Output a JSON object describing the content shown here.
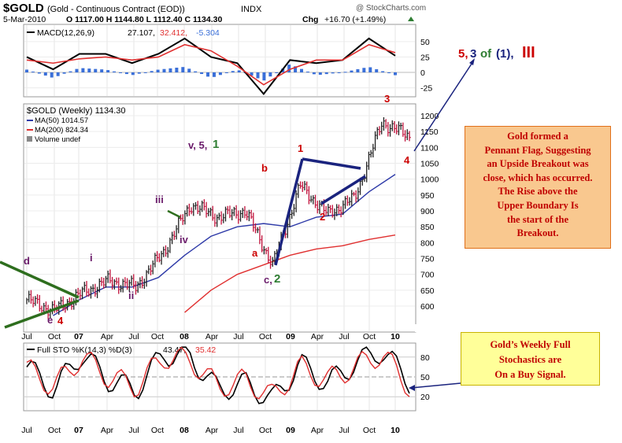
{
  "header": {
    "ticker": "$GOLD",
    "name": "(Gold - Continuous Contract (EOD))",
    "exchange": "INDX",
    "watermark": "@ StockCharts.com",
    "date": "5-Mar-2010",
    "ohlc": "O 1117.00  H 1144.80  L 1112.40  C 1134.30",
    "chg_label": "Chg",
    "chg_value": "+16.70 (+1.49%)",
    "chg_icon": "triangle-up-icon"
  },
  "macd": {
    "label": "MACD(12,26,9)",
    "v1": "27.107,",
    "v2": "32.412,",
    "v3": "-5.304",
    "ticks": [
      "50",
      "25",
      "0",
      "-25"
    ]
  },
  "price": {
    "legend_title": "$GOLD (Weekly) 1134.30",
    "ma50_label": "MA(50) 1014.57",
    "ma200_label": "MA(200) 824.34",
    "volume_label": "Volume undef",
    "ticks": [
      "1200",
      "1150",
      "1100",
      "1050",
      "1000",
      "950",
      "900",
      "850",
      "800",
      "750",
      "700",
      "650",
      "600"
    ]
  },
  "sto": {
    "label": "Full STO %K(14,3) %D(3)",
    "v1": "43.47,",
    "v2": "35.42",
    "ticks": [
      "80",
      "50",
      "20"
    ]
  },
  "x_axis": {
    "top": [
      "Jul",
      "Oct",
      "07",
      "Apr",
      "Jul",
      "Oct",
      "08",
      "Apr",
      "Jul",
      "Oct",
      "09",
      "Apr",
      "Jul",
      "Oct",
      "10"
    ],
    "bottom": [
      "Jul",
      "Oct",
      "07",
      "Apr",
      "Jul",
      "Oct",
      "08",
      "Apr",
      "Jul",
      "Oct",
      "09",
      "Apr",
      "Jul",
      "Oct",
      "10"
    ]
  },
  "wave_labels": {
    "d": "d",
    "i": "i",
    "e4_e": "e",
    "e4_4": "4",
    "ii": "ii",
    "iii": "iii",
    "iv": "iv",
    "v51_a": "v, 5,",
    "v51_b": "1",
    "b": "b",
    "a": "a",
    "c2_a": "c,",
    "c2_b": "2",
    "w1": "1",
    "w2": "2",
    "w3": "3",
    "w4": "4"
  },
  "outer_label": {
    "a": "5,",
    "b": "3",
    "c": "of",
    "d": "(1),",
    "e": "III"
  },
  "note_box": {
    "lines": [
      "Gold formed a",
      "Pennant Flag, Suggesting",
      "an Upside Breakout was",
      "close, which has occurred.",
      "The Rise above the",
      "Upper Boundary Is",
      "the start of the",
      "Breakout."
    ],
    "bg": "#f9c88f",
    "border": "#e0701a",
    "color": "#c00000"
  },
  "sto_box": {
    "lines": [
      "Gold’s Weekly Full",
      "Stochastics are",
      "On a Buy Signal."
    ],
    "bg": "#ffff99",
    "border": "#c8b400",
    "color": "#c00000"
  },
  "colors": {
    "macd_line": "#000000",
    "signal_line": "#e03030",
    "histogram": "#3a6fd8",
    "ma50": "#2e3aa8",
    "ma200": "#e03030",
    "annot_blue": "#1a237e",
    "annot_red": "#cc0000",
    "annot_green": "#2e7d32",
    "annot_purple": "#6a1b6a",
    "trendline_green": "#2e6e1e"
  },
  "chart_data": [
    {
      "type": "line",
      "title": "MACD(12,26,9)",
      "x": [
        "Jul",
        "Oct",
        "07",
        "Apr",
        "Jul",
        "Oct",
        "08",
        "Apr",
        "Jul",
        "Oct",
        "09",
        "Apr",
        "Jul",
        "Oct",
        "10"
      ],
      "series": [
        {
          "name": "MACD(12,26,9)",
          "values": [
            25,
            5,
            30,
            30,
            15,
            30,
            55,
            25,
            15,
            -35,
            20,
            15,
            20,
            55,
            27
          ]
        },
        {
          "name": "Signal",
          "values": [
            20,
            15,
            22,
            25,
            20,
            25,
            45,
            35,
            10,
            -20,
            5,
            20,
            20,
            45,
            32
          ]
        }
      ],
      "ylim": [
        -35,
        60
      ]
    },
    {
      "type": "line",
      "title": "$GOLD (Weekly) 1134.30",
      "x": [
        "Jul",
        "Oct",
        "07",
        "Apr",
        "Jul",
        "Oct",
        "08",
        "Apr",
        "Jul",
        "Oct",
        "09",
        "Apr",
        "Jul",
        "Oct",
        "10"
      ],
      "series": [
        {
          "name": "$GOLD (Weekly)",
          "values": [
            620,
            585,
            640,
            680,
            660,
            770,
            920,
            880,
            900,
            730,
            980,
            890,
            940,
            1180,
            1134
          ]
        },
        {
          "name": "MA(50)",
          "values": [
            null,
            570,
            620,
            660,
            660,
            690,
            760,
            820,
            850,
            860,
            850,
            880,
            890,
            960,
            1015
          ]
        },
        {
          "name": "MA(200)",
          "values": [
            null,
            null,
            null,
            null,
            null,
            null,
            580,
            650,
            700,
            730,
            760,
            780,
            790,
            810,
            824
          ]
        }
      ],
      "ylim": [
        560,
        1230
      ]
    },
    {
      "type": "line",
      "title": "Full STO %K(14,3) %D(3)",
      "x": [
        "Jul",
        "Oct",
        "07",
        "Apr",
        "Jul",
        "Oct",
        "08",
        "Apr",
        "Jul",
        "Oct",
        "09",
        "Apr",
        "Jul",
        "Oct",
        "10"
      ],
      "series": [
        {
          "name": "%K(14,3)",
          "values": [
            65,
            30,
            85,
            45,
            30,
            85,
            80,
            30,
            40,
            15,
            70,
            40,
            70,
            90,
            43
          ]
        },
        {
          "name": "%D(3)",
          "values": [
            62,
            35,
            80,
            50,
            35,
            80,
            75,
            35,
            45,
            20,
            65,
            45,
            65,
            85,
            35
          ]
        }
      ],
      "ylim": [
        0,
        100
      ]
    }
  ]
}
